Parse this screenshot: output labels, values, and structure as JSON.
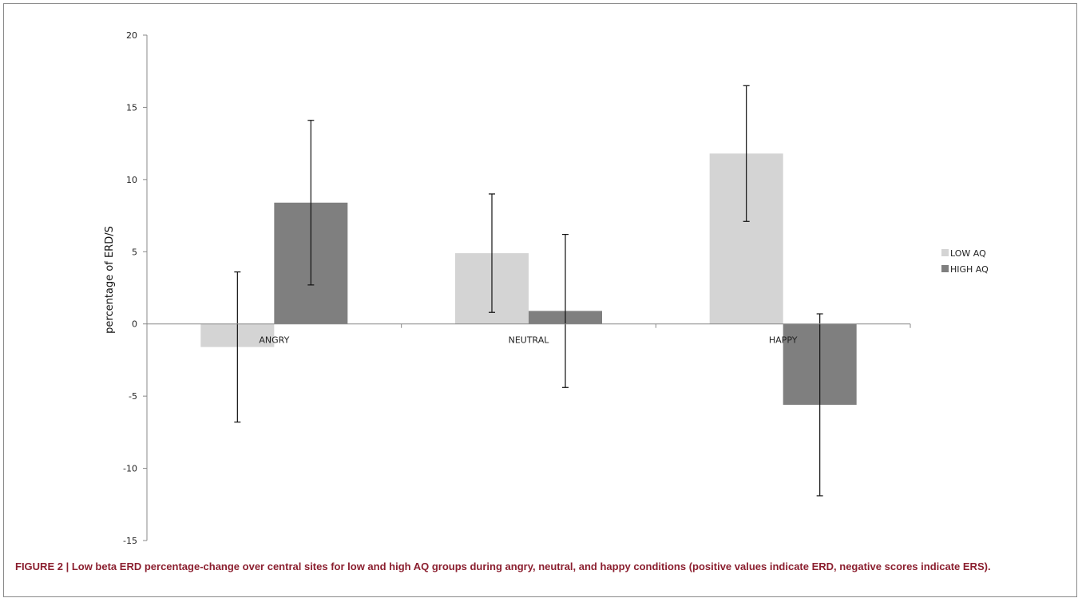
{
  "caption": {
    "label": "FIGURE 2 | ",
    "text": "Low beta ERD percentage-change over central sites for low and high AQ groups during angry, neutral, and happy conditions (positive values indicate ERD, negative scores indicate ERS)."
  },
  "chart_data": {
    "type": "bar",
    "categories": [
      "ANGRY",
      "NEUTRAL",
      "HAPPY"
    ],
    "series": [
      {
        "name": "LOW AQ",
        "color": "#d4d4d4",
        "values": [
          -1.6,
          4.9,
          11.8
        ],
        "error": [
          5.2,
          4.1,
          4.7
        ]
      },
      {
        "name": "HIGH AQ",
        "color": "#7f7f7f",
        "values": [
          8.4,
          0.9,
          -5.6
        ],
        "error": [
          5.7,
          5.3,
          6.3
        ]
      }
    ],
    "ylabel": "percentage of ERD/S",
    "xlabel": "",
    "ylim": [
      -15,
      20
    ],
    "yticks": [
      -15,
      -10,
      -5,
      0,
      5,
      10,
      15,
      20
    ],
    "grid": false,
    "legend_position": "right"
  }
}
